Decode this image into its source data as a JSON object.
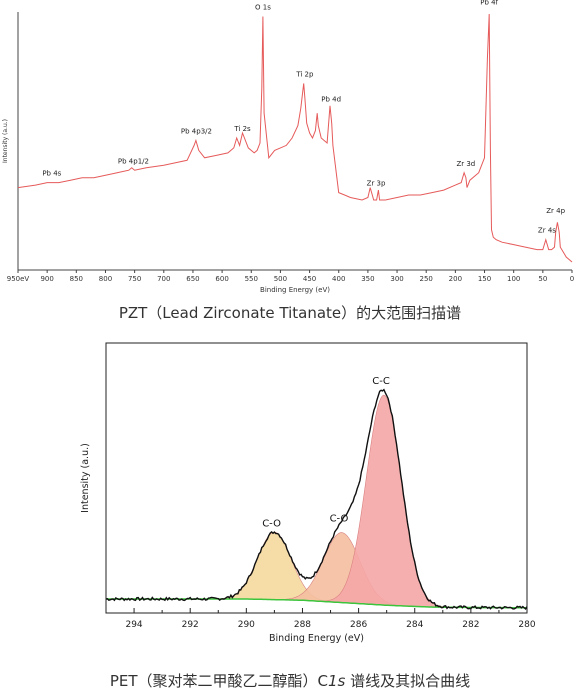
{
  "chart_data": [
    {
      "type": "line",
      "caption": "PZT（Lead Zirconate Titanate）的大范围扫描谱",
      "xlabel": "Binding Energy (eV)",
      "ylabel": "Intensity (a.u.)",
      "xlim": [
        950,
        0
      ],
      "x_reversed": true,
      "x_ticks": [
        "950eV",
        "900",
        "850",
        "800",
        "750",
        "700",
        "650",
        "600",
        "550",
        "500",
        "450",
        "400",
        "350",
        "300",
        "250",
        "200",
        "150",
        "100",
        "50",
        "0"
      ],
      "x_tick_values": [
        950,
        900,
        850,
        800,
        750,
        700,
        650,
        600,
        550,
        500,
        450,
        400,
        350,
        300,
        250,
        200,
        150,
        100,
        50,
        0
      ],
      "ylim": [
        0,
        1
      ],
      "line_color": "#e65a5a",
      "series": [
        {
          "x": [
            950,
            920,
            900,
            880,
            860,
            840,
            820,
            800,
            780,
            760,
            755,
            750,
            730,
            700,
            680,
            660,
            648,
            645,
            640,
            630,
            610,
            590,
            580,
            575,
            570,
            565,
            555,
            545,
            540,
            535,
            532,
            530,
            528,
            520,
            510,
            500,
            490,
            480,
            470,
            465,
            460,
            458,
            455,
            450,
            445,
            440,
            437,
            435,
            430,
            420,
            415,
            412,
            410,
            400,
            390,
            380,
            360,
            350,
            346,
            340,
            335,
            332,
            330,
            320,
            300,
            280,
            260,
            240,
            220,
            200,
            190,
            185,
            182,
            180,
            175,
            160,
            150,
            145,
            142,
            140,
            138,
            135,
            130,
            120,
            100,
            80,
            60,
            50,
            45,
            40,
            35,
            30,
            28,
            25,
            22,
            20,
            15,
            10,
            5,
            0
          ],
          "y": [
            0.3,
            0.31,
            0.32,
            0.32,
            0.33,
            0.34,
            0.34,
            0.35,
            0.36,
            0.37,
            0.38,
            0.37,
            0.38,
            0.39,
            0.4,
            0.41,
            0.47,
            0.49,
            0.45,
            0.42,
            0.43,
            0.44,
            0.46,
            0.5,
            0.47,
            0.52,
            0.46,
            0.44,
            0.45,
            0.48,
            0.7,
            0.99,
            0.6,
            0.42,
            0.45,
            0.46,
            0.47,
            0.5,
            0.55,
            0.62,
            0.72,
            0.66,
            0.56,
            0.52,
            0.5,
            0.53,
            0.6,
            0.55,
            0.5,
            0.48,
            0.63,
            0.56,
            0.47,
            0.28,
            0.27,
            0.26,
            0.25,
            0.26,
            0.3,
            0.25,
            0.25,
            0.29,
            0.25,
            0.25,
            0.26,
            0.27,
            0.27,
            0.28,
            0.29,
            0.31,
            0.32,
            0.36,
            0.34,
            0.3,
            0.33,
            0.36,
            0.42,
            0.82,
            1.0,
            0.45,
            0.13,
            0.1,
            0.09,
            0.08,
            0.07,
            0.06,
            0.05,
            0.05,
            0.09,
            0.05,
            0.05,
            0.06,
            0.12,
            0.16,
            0.12,
            0.06,
            0.04,
            0.02,
            0.01,
            0.0
          ]
        }
      ],
      "annotations": [
        {
          "label": "Pb 4s",
          "x": 892,
          "y": 0.34
        },
        {
          "label": "Pb 4p1/2",
          "x": 752,
          "y": 0.39
        },
        {
          "label": "Pb 4p3/2",
          "x": 644,
          "y": 0.51
        },
        {
          "label": "Ti 2s",
          "x": 565,
          "y": 0.52
        },
        {
          "label": "O 1s",
          "x": 530,
          "y": 1.01
        },
        {
          "label": "Ti 2p",
          "x": 458,
          "y": 0.74
        },
        {
          "label": "Pb 4d",
          "x": 413,
          "y": 0.64
        },
        {
          "label": "Zr 3p",
          "x": 336,
          "y": 0.3
        },
        {
          "label": "Zr 3d",
          "x": 182,
          "y": 0.38
        },
        {
          "label": "Pb 4f",
          "x": 142,
          "y": 1.03
        },
        {
          "label": "Zr 4s",
          "x": 43,
          "y": 0.11
        },
        {
          "label": "Zr 4p",
          "x": 28,
          "y": 0.19
        }
      ]
    },
    {
      "type": "area",
      "caption_prefix": "PET（聚对苯二甲酸乙二醇酯）C",
      "caption_italic": "1s",
      "caption_suffix": " 谱线及其拟合曲线",
      "xlabel": "Binding Energy (eV)",
      "ylabel": "Intensity (a.u.)",
      "xlim": [
        295,
        280
      ],
      "x_reversed": true,
      "x_ticks": [
        "294",
        "292",
        "290",
        "288",
        "286",
        "284",
        "282",
        "280"
      ],
      "x_tick_values": [
        294,
        292,
        290,
        288,
        286,
        284,
        282,
        280
      ],
      "ylim": [
        0,
        1
      ],
      "background": {
        "color": "#3cc43c",
        "x": [
          295,
          290,
          288,
          286.5,
          285,
          283.5,
          282,
          280
        ],
        "y": [
          0.04,
          0.04,
          0.035,
          0.025,
          0.015,
          0.008,
          0.006,
          0.005
        ]
      },
      "components": [
        {
          "label": "C-O",
          "center": 289.0,
          "height": 0.27,
          "width": 0.6,
          "fill": "#f5d99e"
        },
        {
          "label": "C-O",
          "center": 286.6,
          "height": 0.28,
          "width": 0.65,
          "fill": "#f5bfa0"
        },
        {
          "label": "C-C",
          "center": 285.1,
          "height": 0.84,
          "width": 0.62,
          "fill": "#f5a6a6"
        }
      ],
      "envelope_color": "#111111",
      "label_positions": [
        {
          "label": "C-O",
          "x": 289.1,
          "y": 0.33
        },
        {
          "label": "C-O",
          "x": 286.7,
          "y": 0.35
        },
        {
          "label": "C-C",
          "x": 285.2,
          "y": 0.9
        }
      ]
    }
  ]
}
